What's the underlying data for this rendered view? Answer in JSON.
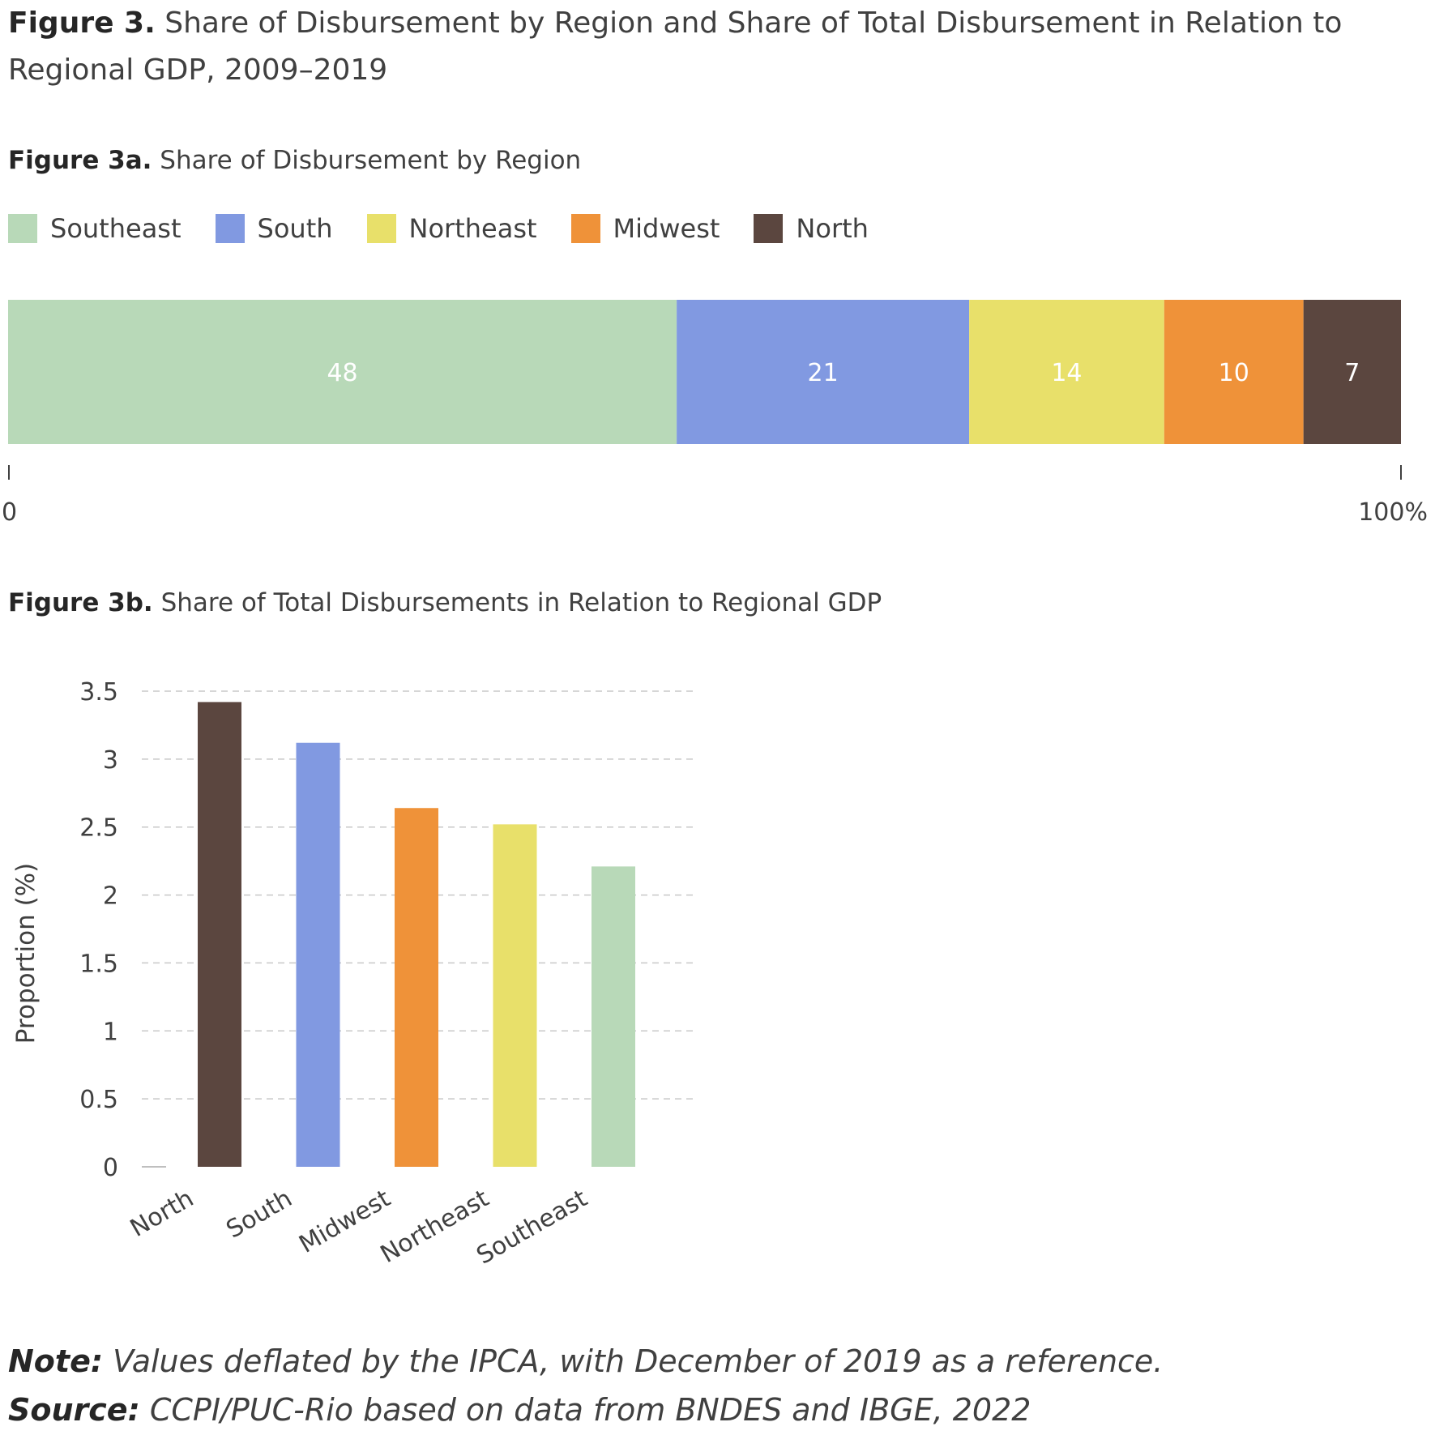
{
  "title": {
    "label": "Figure 3.",
    "text": "Share of Disbursement by Region and Share of Total Disbursement in Relation to Regional GDP, 2009–2019"
  },
  "colors": {
    "Southeast": "#b8d9b8",
    "South": "#8199e1",
    "Northeast": "#e8e06a",
    "Midwest": "#ef9239",
    "North": "#5b463f"
  },
  "chart_data": [
    {
      "type": "bar",
      "orientation": "horizontal-stacked",
      "title_label": "Figure 3a.",
      "title": "Share of Disbursement by Region",
      "legend_position": "top-left",
      "categories": [
        "Southeast",
        "South",
        "Northeast",
        "Midwest",
        "North"
      ],
      "values": [
        48,
        21,
        14,
        10,
        7
      ],
      "xlim": [
        0,
        100
      ],
      "axis_labels": [
        "0",
        "100%"
      ]
    },
    {
      "type": "bar",
      "title_label": "Figure 3b.",
      "title": "Share of Total Disbursements in Relation to Regional GDP",
      "ylabel": "Proportion (%)",
      "categories": [
        "North",
        "South",
        "Midwest",
        "Northeast",
        "Southeast"
      ],
      "values": [
        3.42,
        3.12,
        2.64,
        2.52,
        2.21
      ],
      "ylim": [
        0,
        3.5
      ],
      "yticks": [
        "0",
        "0.5",
        "1",
        "1.5",
        "2",
        "2.5",
        "3",
        "3.5"
      ],
      "grid": true
    }
  ],
  "footer": {
    "note_label": "Note:",
    "note_text": "Values deflated by the IPCA, with December of 2019 as a reference.",
    "source_label": "Source:",
    "source_text": "CCPI/PUC-Rio based on data from BNDES and IBGE, 2022"
  }
}
